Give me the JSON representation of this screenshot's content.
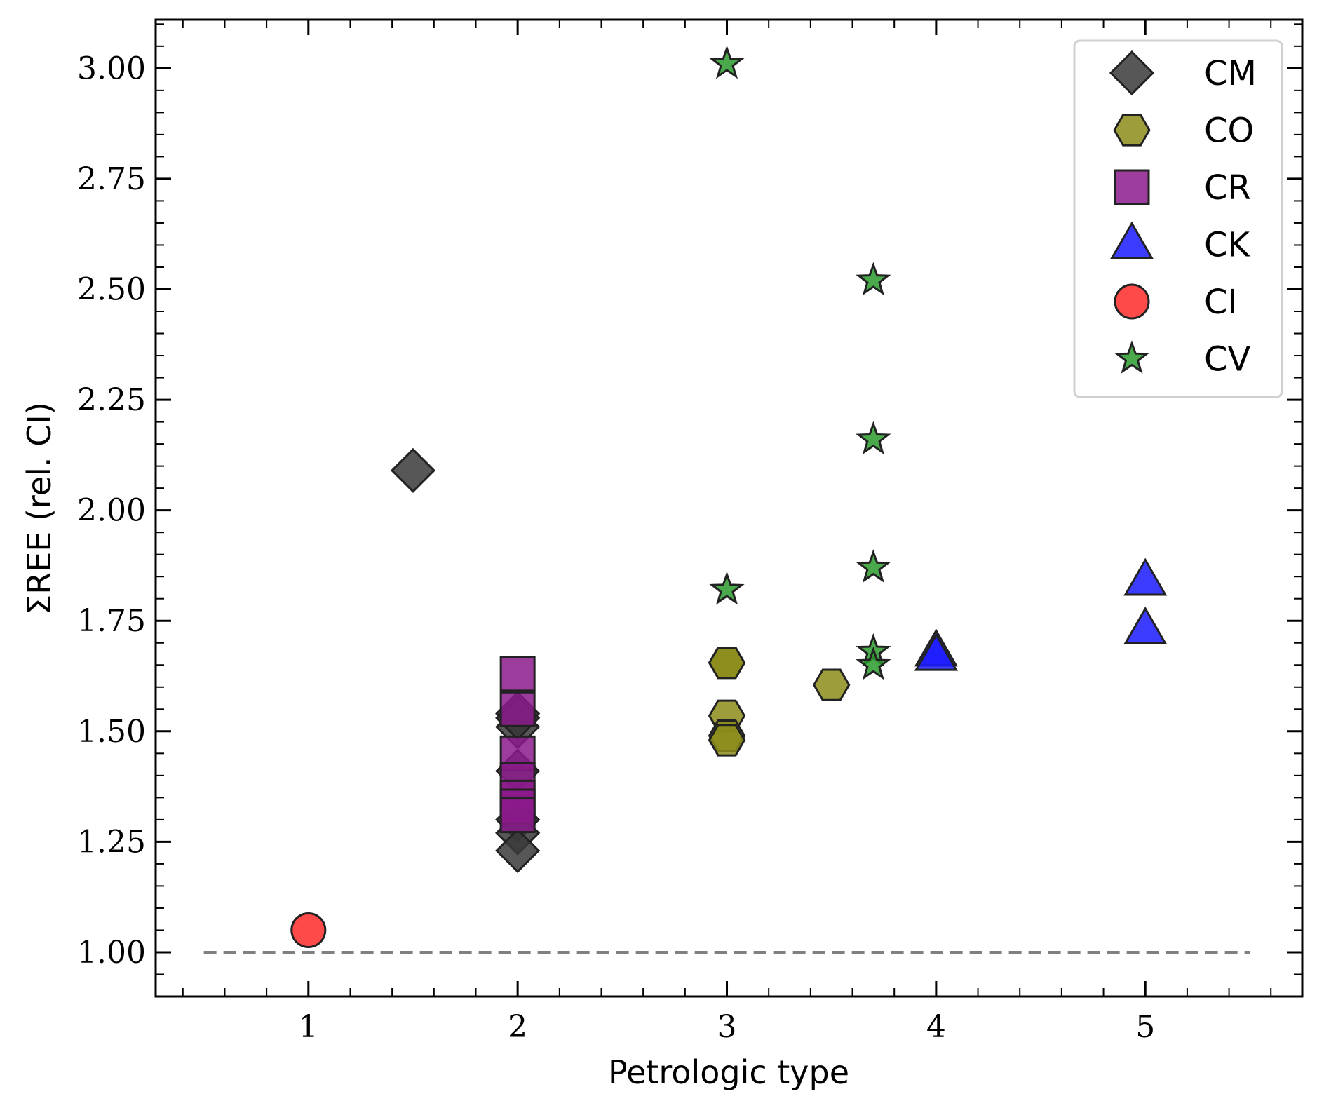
{
  "chart_data": {
    "type": "scatter",
    "title": "",
    "xlabel": "Petrologic type",
    "ylabel": "ΣREE (rel. CI)",
    "xlim": [
      0.27,
      5.75
    ],
    "ylim": [
      0.9,
      3.11
    ],
    "xticks": [
      1,
      2,
      3,
      4,
      5
    ],
    "xtick_labels": [
      "1",
      "2",
      "3",
      "4",
      "5"
    ],
    "yticks": [
      1.0,
      1.25,
      1.5,
      1.75,
      2.0,
      2.25,
      2.5,
      2.75,
      3.0
    ],
    "ytick_labels": [
      "1.00",
      "1.25",
      "1.50",
      "1.75",
      "2.00",
      "2.25",
      "2.50",
      "2.75",
      "3.00"
    ],
    "grid": false,
    "legend_position": "top-right",
    "reference_line": {
      "y": 1.0,
      "x_from": 0.5,
      "x_to": 5.5,
      "style": "dashed",
      "color": "#808080"
    },
    "series": [
      {
        "name": "CM",
        "marker": "diamond",
        "color": "#3a3a3a",
        "points": [
          [
            1.5,
            2.09
          ],
          [
            2.0,
            1.54
          ],
          [
            2.0,
            1.51
          ],
          [
            2.0,
            1.53
          ],
          [
            2.0,
            1.41
          ],
          [
            2.0,
            1.3
          ],
          [
            2.0,
            1.27
          ],
          [
            2.0,
            1.23
          ]
        ]
      },
      {
        "name": "CO",
        "marker": "hexagon",
        "color": "#8c8c1a",
        "points": [
          [
            3.0,
            1.655
          ],
          [
            3.0,
            1.655
          ],
          [
            3.0,
            1.535
          ],
          [
            3.0,
            1.49
          ],
          [
            3.0,
            1.48
          ],
          [
            3.5,
            1.605
          ]
        ]
      },
      {
        "name": "CR",
        "marker": "square",
        "color": "#8b1a8b",
        "points": [
          [
            2.0,
            1.63
          ],
          [
            2.0,
            1.55
          ],
          [
            2.0,
            1.45
          ],
          [
            2.0,
            1.39
          ],
          [
            2.0,
            1.35
          ],
          [
            2.0,
            1.33
          ],
          [
            2.0,
            1.31
          ]
        ]
      },
      {
        "name": "CK",
        "marker": "triangle",
        "color": "#1a1aff",
        "points": [
          [
            4.0,
            1.68
          ],
          [
            4.0,
            1.67
          ],
          [
            5.0,
            1.84
          ],
          [
            5.0,
            1.73
          ]
        ]
      },
      {
        "name": "CI",
        "marker": "circle",
        "color": "#ff2a2a",
        "points": [
          [
            1.0,
            1.05
          ]
        ]
      },
      {
        "name": "CV",
        "marker": "star",
        "color": "#2a9a2a",
        "points": [
          [
            3.0,
            3.01
          ],
          [
            3.0,
            1.82
          ],
          [
            3.7,
            2.52
          ],
          [
            3.7,
            2.16
          ],
          [
            3.7,
            1.87
          ],
          [
            3.7,
            1.68
          ],
          [
            3.7,
            1.65
          ]
        ]
      }
    ]
  }
}
